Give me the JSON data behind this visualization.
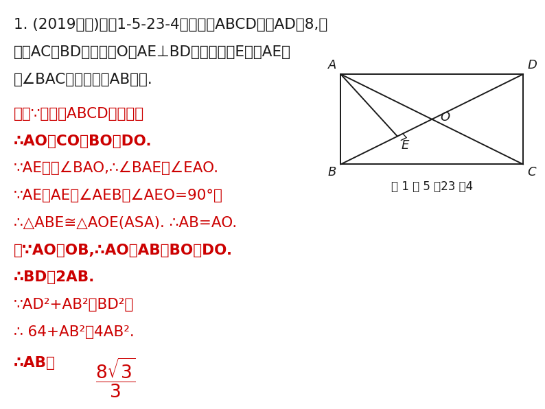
{
  "bg_color": "#ffffff",
  "text_color_black": "#1a1a1a",
  "text_color_red": "#cc0000",
  "problem_line1": "1. (2019通辽)如图1-5-23-4，在矩形ABCD中，AD＝8,对",
  "problem_line2": "角线AC与BD相交于点O，AE⊥BD，垂足为点E，且AE平",
  "problem_line3": "分∠BAC，试求线段AB的长.",
  "sol1": "解：∵四边形ABCD是矩形，",
  "sol2": "∴AO＝CO＝BO＝DO.",
  "sol3": "∵AE平分∠BAO,∴∠BAE＝∠EAO.",
  "sol4": "∵AE＝AE，∠AEB＝∠AEO=90°，",
  "sol5": "∴△ABE≅△AOE(ASA). ∴AB=AO.",
  "sol6": "又∵AO＝OB,∴AO＝AB＝BO＝DO.",
  "sol7": "∴BD＝2AB.",
  "sol8": "∵AD²+AB²＝BD²，",
  "sol9": "∴ 64+AB²＝4AB².",
  "sol10_prefix": "∴AB＝",
  "fig_caption": "图 1 － 5 －23 －4"
}
